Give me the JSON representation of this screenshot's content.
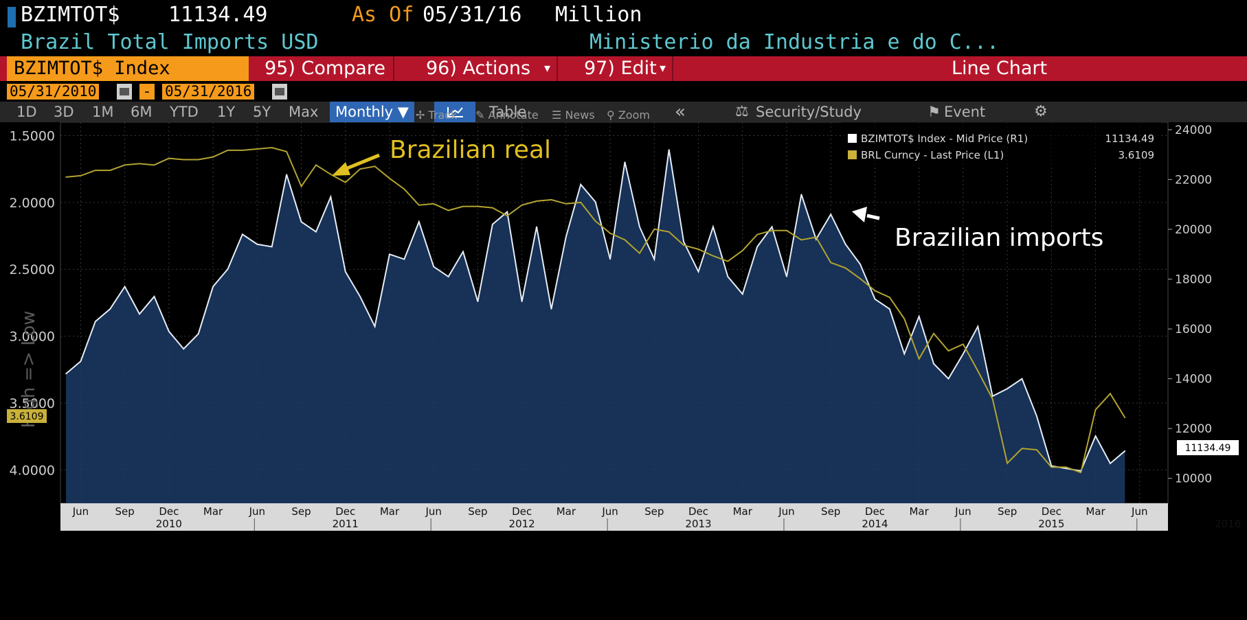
{
  "header": {
    "ticker": "BZIMTOT$",
    "last_value": "11134.49",
    "as_of_label": "As Of",
    "as_of_date": "05/31/16",
    "unit": "Million",
    "security_name": "Brazil Total Imports USD",
    "source": "Ministerio da Industria e do C..."
  },
  "command_bar": {
    "security": "BZIMTOT$ Index",
    "compare": "95) Compare",
    "actions": "96) Actions",
    "edit": "97) Edit",
    "view": "Line Chart"
  },
  "date_range": {
    "start": "05/31/2010",
    "separator": "-",
    "end": "05/31/2016"
  },
  "periods": [
    "1D",
    "3D",
    "1M",
    "6M",
    "YTD",
    "1Y",
    "5Y",
    "Max"
  ],
  "frequency": "Monthly ▼",
  "table_label": "Table",
  "collapse": "«",
  "security_study": "Security/Study",
  "event": "Event",
  "settings_icon": "gear-icon",
  "toolbar": {
    "track": "Track",
    "annotate": "Annotate",
    "news": "News",
    "zoom": "Zoom"
  },
  "colors": {
    "imports": "#e6edf5",
    "imports_fill": "#1b3a66",
    "brl": "#b3a430",
    "accent": "#f59a1a",
    "cmdbar": "#b5152b"
  },
  "chart_data": {
    "type": "line",
    "ylabel_left": "High => Low",
    "left_axis": {
      "ticks": [
        "1.5000",
        "2.0000",
        "2.5000",
        "3.0000",
        "3.5000",
        "4.0000"
      ],
      "range": [
        1.4,
        4.25
      ],
      "inverted": true,
      "current_label": "3.6109"
    },
    "right_axis": {
      "ticks": [
        "10000",
        "12000",
        "14000",
        "16000",
        "18000",
        "20000",
        "22000",
        "24000"
      ],
      "range": [
        9000,
        24300
      ],
      "current_label": "11134.49"
    },
    "x_month_labels": [
      "Jun",
      "Sep",
      "Dec",
      "Mar",
      "Jun",
      "Sep",
      "Dec",
      "Mar",
      "Jun",
      "Sep",
      "Dec",
      "Mar",
      "Jun",
      "Sep",
      "Dec",
      "Mar",
      "Jun",
      "Sep",
      "Dec",
      "Mar",
      "Jun",
      "Sep",
      "Dec",
      "Mar",
      "Jun"
    ],
    "x_year_labels": [
      "2010",
      "2011",
      "2012",
      "2013",
      "2014",
      "2015",
      "2016"
    ],
    "x_start": "2010-05",
    "legend": [
      {
        "name": "BZIMTOT$ Index - Mid Price (R1)",
        "value": "11134.49"
      },
      {
        "name": "BRL Curncy - Last Price (L1)",
        "value": "3.6109"
      }
    ],
    "annotations": [
      "Brazilian real",
      "Brazilian imports"
    ],
    "series": [
      {
        "name": "BZIMTOT$ Index - Mid Price (R1)",
        "axis": "right",
        "values": [
          14200,
          14700,
          16300,
          16800,
          17700,
          16600,
          17300,
          15900,
          15200,
          15800,
          17700,
          18400,
          19800,
          19400,
          19300,
          22200,
          20300,
          19900,
          21300,
          18300,
          17300,
          16100,
          19000,
          18800,
          20300,
          18500,
          18100,
          19100,
          17100,
          20200,
          20700,
          17100,
          20100,
          16800,
          19700,
          21800,
          21100,
          18800,
          22700,
          20100,
          18800,
          23200,
          19500,
          18300,
          20100,
          18100,
          17400,
          19300,
          20100,
          18100,
          21400,
          19600,
          20600,
          19400,
          18600,
          17200,
          16800,
          15000,
          16500,
          14600,
          14000,
          15000,
          16100,
          13300,
          13600,
          14000,
          12500,
          10500,
          10400,
          10300,
          11700,
          10600,
          11100
        ]
      },
      {
        "name": "BRL Curncy - Last Price (L1)",
        "axis": "left",
        "values": [
          1.81,
          1.8,
          1.76,
          1.76,
          1.72,
          1.71,
          1.72,
          1.67,
          1.68,
          1.68,
          1.66,
          1.61,
          1.61,
          1.6,
          1.59,
          1.62,
          1.88,
          1.72,
          1.79,
          1.85,
          1.75,
          1.73,
          1.82,
          1.9,
          2.02,
          2.01,
          2.06,
          2.03,
          2.03,
          2.04,
          2.1,
          2.02,
          1.99,
          1.98,
          2.01,
          2.0,
          2.14,
          2.23,
          2.28,
          2.38,
          2.2,
          2.22,
          2.32,
          2.35,
          2.4,
          2.44,
          2.36,
          2.24,
          2.21,
          2.21,
          2.28,
          2.26,
          2.45,
          2.49,
          2.57,
          2.66,
          2.71,
          2.87,
          3.17,
          2.98,
          3.11,
          3.06,
          3.26,
          3.47,
          3.95,
          3.84,
          3.85,
          3.98,
          3.98,
          4.02,
          3.55,
          3.43,
          3.61
        ]
      }
    ]
  }
}
